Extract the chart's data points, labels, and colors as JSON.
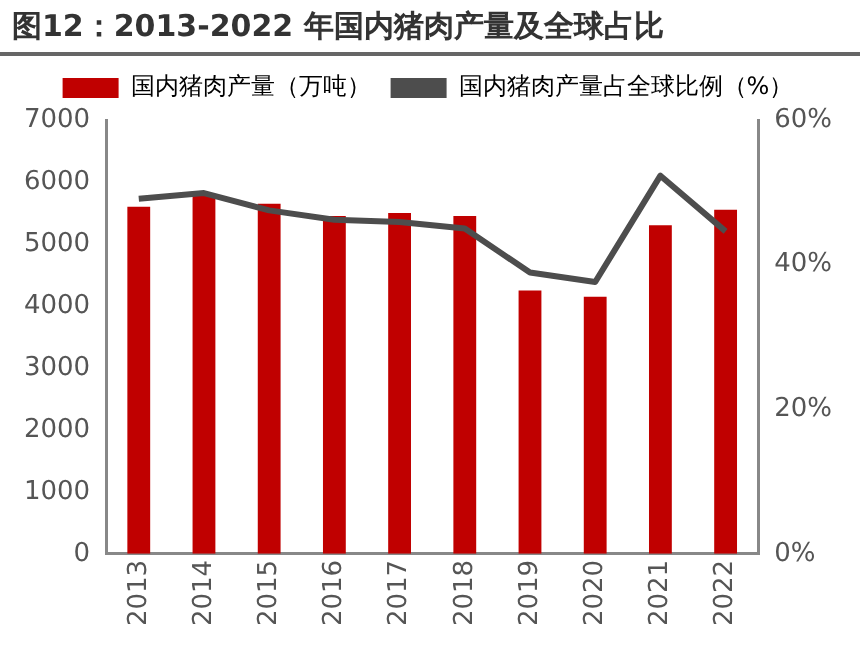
{
  "chart_data": {
    "type": "bar",
    "title": "图12：2013-2022 年国内猪肉产量及全球占比",
    "categories": [
      "2013",
      "2014",
      "2015",
      "2016",
      "2017",
      "2018",
      "2019",
      "2020",
      "2021",
      "2022"
    ],
    "series": [
      {
        "name": "国内猪肉产量（万吨）",
        "color": "#c00000",
        "values": [
          5600,
          5800,
          5650,
          5450,
          5500,
          5450,
          4250,
          4150,
          5300,
          5550
        ]
      },
      {
        "name": "国内猪肉产量占全球比例（%）",
        "type": "line",
        "axis": "y2",
        "color": "#4d4d4d",
        "values": [
          49.1,
          49.9,
          47.5,
          46.2,
          45.9,
          45.0,
          38.9,
          37.6,
          52.3,
          44.6
        ]
      }
    ],
    "ylim": [
      0,
      7000
    ],
    "yticks": [
      0,
      1000,
      2000,
      3000,
      4000,
      5000,
      6000,
      7000
    ],
    "y2lim": [
      0,
      60
    ],
    "y2ticks": [
      {
        "value": 0,
        "label": "0%"
      },
      {
        "value": 20,
        "label": "20%"
      },
      {
        "value": 40,
        "label": "40%"
      },
      {
        "value": 60,
        "label": "60%"
      }
    ],
    "grid": false,
    "legend": "top",
    "marker": "none",
    "line_style": "solid"
  }
}
